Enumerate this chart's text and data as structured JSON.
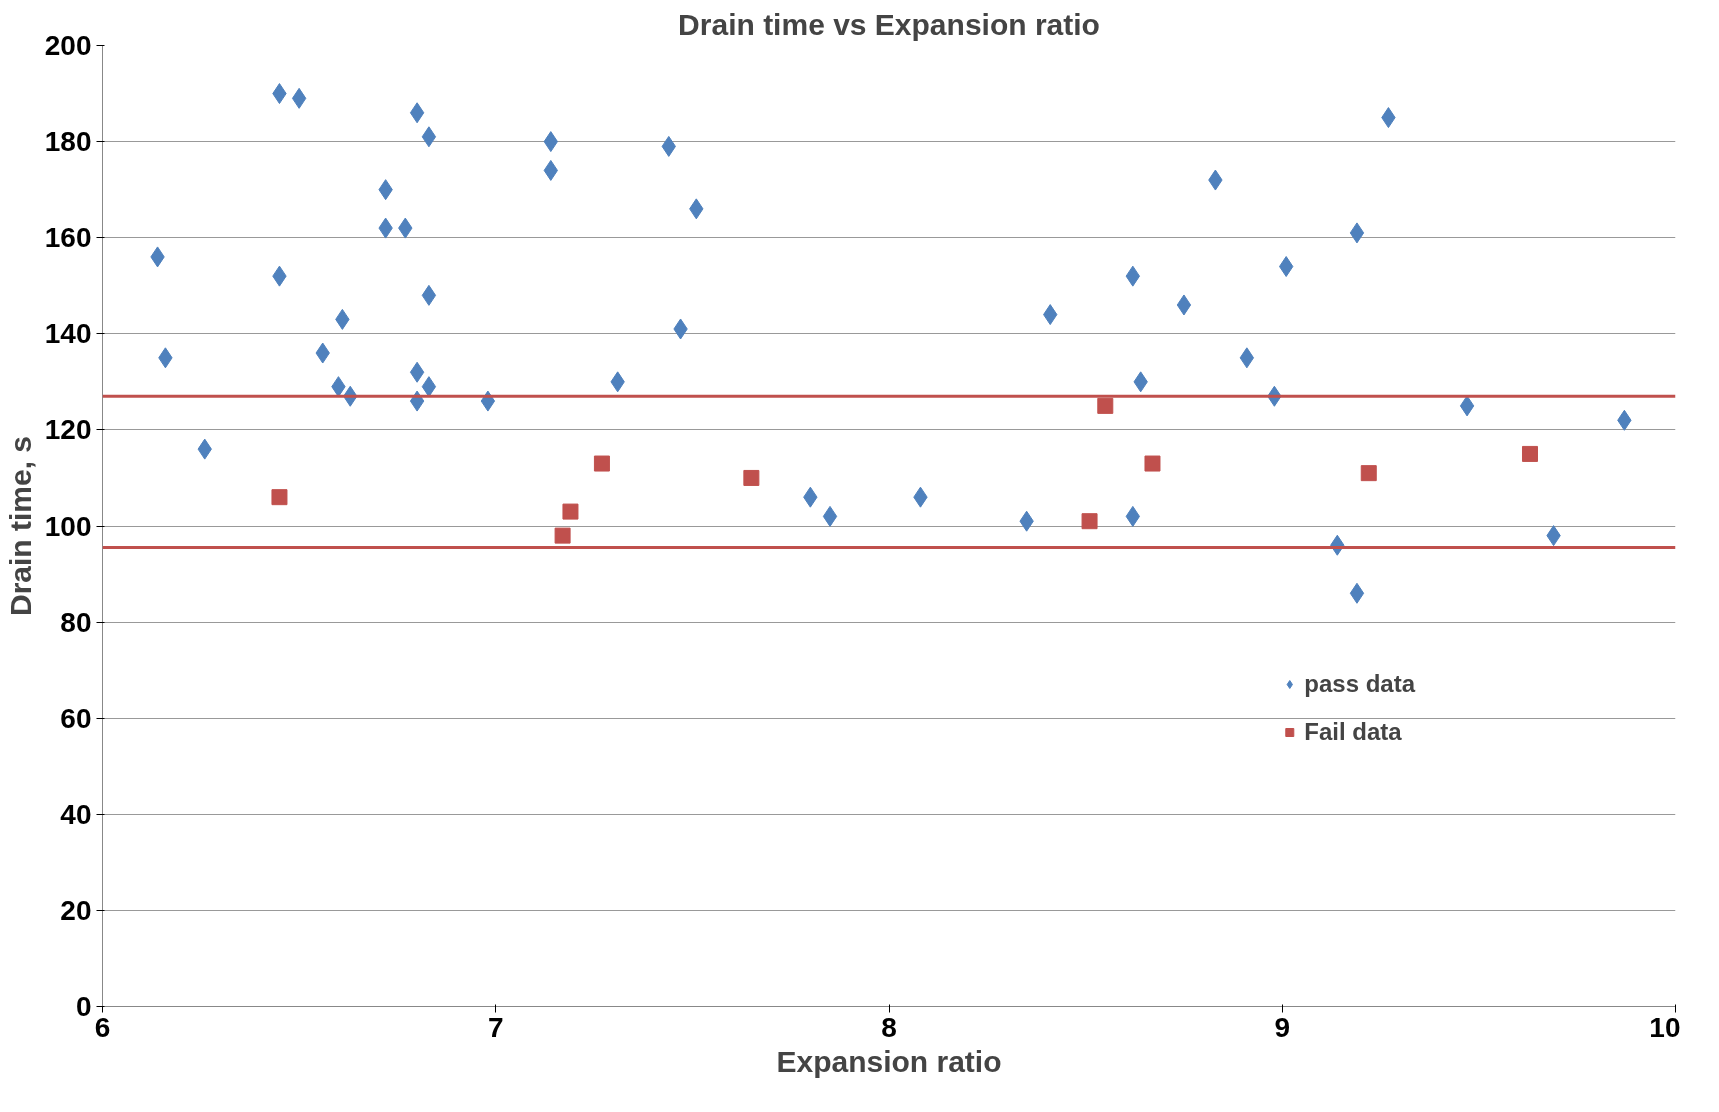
{
  "chart_data": {
    "type": "scatter",
    "title": "Drain time vs Expansion ratio",
    "xlabel": "Expansion ratio",
    "ylabel": "Drain time, s",
    "xlim": [
      6,
      10
    ],
    "ylim": [
      0,
      200
    ],
    "xticks": [
      6,
      7,
      8,
      9,
      10
    ],
    "yticks": [
      0,
      20,
      40,
      60,
      80,
      100,
      120,
      140,
      160,
      180,
      200
    ],
    "grid": "y",
    "legend": "right",
    "series": [
      {
        "name": "pass data",
        "color": "#4f81bd",
        "marker": "diamond",
        "x": [
          6.14,
          6.16,
          6.26,
          6.45,
          6.5,
          6.45,
          6.56,
          6.61,
          6.6,
          6.63,
          6.72,
          6.72,
          6.77,
          6.8,
          6.83,
          6.83,
          6.8,
          6.8,
          6.83,
          6.98,
          7.14,
          7.14,
          7.31,
          7.44,
          7.51,
          7.47,
          7.8,
          7.85,
          8.08,
          8.35,
          8.41,
          8.62,
          8.64,
          8.62,
          8.75,
          8.83,
          8.91,
          8.98,
          9.01,
          9.14,
          9.19,
          9.19,
          9.27,
          9.47,
          9.69,
          9.87
        ],
        "values": [
          156,
          135,
          116,
          190,
          189,
          152,
          136,
          143,
          129,
          127,
          170,
          162,
          162,
          186,
          181,
          148,
          132,
          126,
          129,
          126,
          180,
          174,
          130,
          179,
          166,
          141,
          106,
          102,
          106,
          101,
          144,
          152,
          130,
          102,
          146,
          172,
          135,
          127,
          154,
          96,
          161,
          86,
          185,
          125,
          98,
          122
        ]
      },
      {
        "name": "Fail data",
        "color": "#c0504d",
        "marker": "square",
        "x": [
          6.45,
          7.17,
          7.19,
          7.27,
          7.65,
          8.51,
          8.55,
          8.67,
          9.22,
          9.63
        ],
        "values": [
          106,
          98,
          103,
          113,
          110,
          101,
          125,
          113,
          111,
          115
        ]
      }
    ],
    "ref_lines": [
      {
        "axis": "y",
        "value": 127,
        "color": "#c0504d"
      },
      {
        "axis": "y",
        "value": 95.5,
        "color": "#c0504d"
      }
    ]
  }
}
